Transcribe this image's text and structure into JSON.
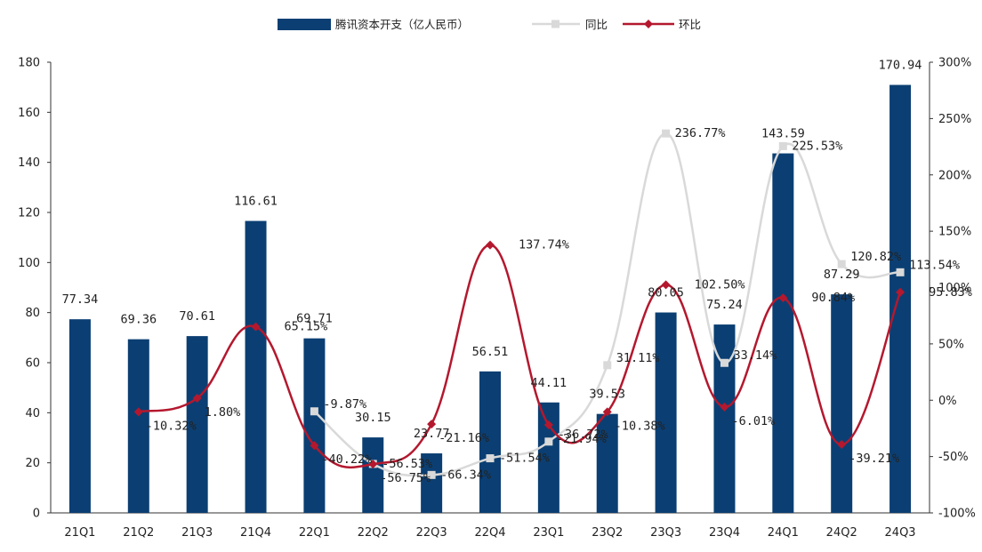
{
  "chart_data": {
    "type": "bar",
    "title": "",
    "categories": [
      "21Q1",
      "21Q2",
      "21Q3",
      "21Q4",
      "22Q1",
      "22Q2",
      "22Q3",
      "22Q4",
      "23Q1",
      "23Q2",
      "23Q3",
      "23Q4",
      "24Q1",
      "24Q2",
      "24Q3"
    ],
    "series": [
      {
        "name": "腾讯资本开支（亿人民币）",
        "type": "bar",
        "axis": "left",
        "color": "#0b3f73",
        "values": [
          77.34,
          69.36,
          70.61,
          116.61,
          69.71,
          30.15,
          23.77,
          56.51,
          44.11,
          39.53,
          80.05,
          75.24,
          143.59,
          87.29,
          170.94
        ],
        "labels": [
          "77.34",
          "69.36",
          "70.61",
          "116.61",
          "69.71",
          "30.15",
          "23.77",
          "56.51",
          "44.11",
          "39.53",
          "80.05",
          "75.24",
          "143.59",
          "87.29",
          "170.94"
        ]
      },
      {
        "name": "同比",
        "type": "line",
        "axis": "right",
        "color": "#d9d9d9",
        "values": [
          null,
          null,
          null,
          null,
          -9.87,
          -56.53,
          -66.34,
          -51.54,
          -36.72,
          31.11,
          236.77,
          33.14,
          225.53,
          120.82,
          113.54
        ],
        "labels": [
          null,
          null,
          null,
          null,
          "-9.87%",
          "-56.53%",
          "-66.34%",
          "-51.54%",
          "-36.72%",
          "31.11%",
          "236.77%",
          "33.14%",
          "225.53%",
          "120.82%",
          "113.54%"
        ]
      },
      {
        "name": "环比",
        "type": "line",
        "axis": "right",
        "color": "#b4182e",
        "values": [
          null,
          -10.32,
          1.8,
          65.15,
          -40.22,
          -56.75,
          -21.16,
          137.74,
          -21.94,
          -10.38,
          102.5,
          -6.01,
          90.84,
          -39.21,
          95.83
        ],
        "labels": [
          null,
          "-10.32%",
          "1.80%",
          "65.15%",
          "-40.22%",
          "-56.75%",
          "-21.16%",
          "137.74%",
          "-21.94%",
          "-10.38%",
          "102.50%",
          "-6.01%",
          "90.84%",
          "-39.21%",
          "95.83%"
        ]
      }
    ],
    "y_left": {
      "min": 0,
      "max": 180,
      "step": 20,
      "ticks": [
        "0",
        "20",
        "40",
        "60",
        "80",
        "100",
        "120",
        "140",
        "160",
        "180"
      ]
    },
    "y_right": {
      "min": -100,
      "max": 300,
      "step": 50,
      "ticks": [
        "-100%",
        "-50%",
        "0%",
        "50%",
        "100%",
        "150%",
        "200%",
        "250%",
        "300%"
      ]
    },
    "legend": {
      "position": "top",
      "entries": [
        "腾讯资本开支（亿人民币）",
        "同比",
        "环比"
      ]
    }
  }
}
